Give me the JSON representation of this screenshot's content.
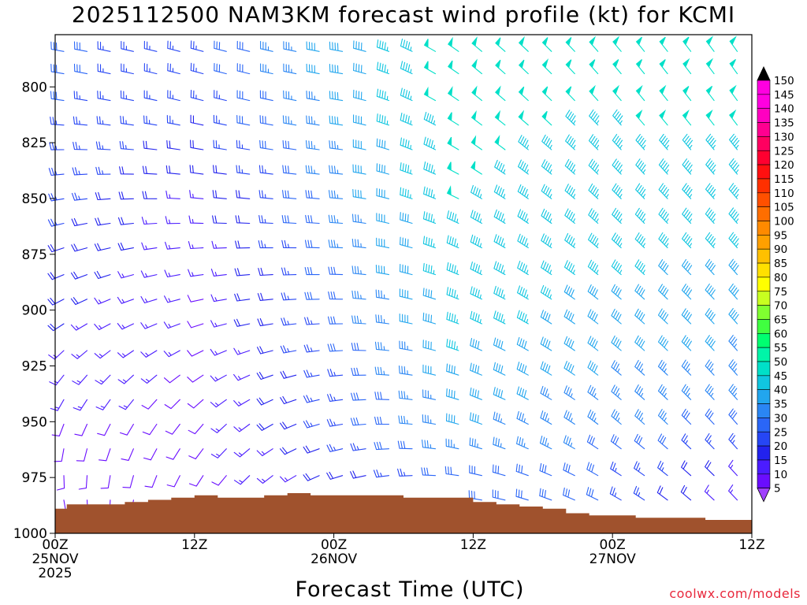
{
  "chart_data": {
    "type": "wind_barb_time_height",
    "title": "2025112500 NAM3KM forecast wind profile (kt) for KCMI",
    "xlabel": "Forecast Time (UTC)",
    "ylabel": "",
    "credit": "coolwx.com/models",
    "x_range_hours": [
      0,
      60
    ],
    "y_range_hPa": [
      1000,
      775
    ],
    "x_ticks": [
      {
        "hour": 0,
        "lines": [
          "00Z",
          "25NOV",
          "2025"
        ]
      },
      {
        "hour": 12,
        "lines": [
          "12Z"
        ]
      },
      {
        "hour": 24,
        "lines": [
          "00Z",
          "26NOV"
        ]
      },
      {
        "hour": 36,
        "lines": [
          "12Z"
        ]
      },
      {
        "hour": 48,
        "lines": [
          "00Z",
          "27NOV"
        ]
      },
      {
        "hour": 60,
        "lines": [
          "12Z"
        ]
      }
    ],
    "y_ticks": [
      800,
      825,
      850,
      875,
      900,
      925,
      950,
      975,
      1000
    ],
    "barb_times_hours": [
      0,
      2,
      4,
      6,
      8,
      10,
      12,
      14,
      16,
      18,
      20,
      22,
      24,
      26,
      28,
      30,
      32,
      34,
      36,
      38,
      40,
      42,
      44,
      46,
      48,
      50,
      52,
      54,
      56,
      58
    ],
    "barb_levels_hPa": [
      782,
      792,
      804,
      815,
      826,
      837,
      848,
      859,
      870,
      882,
      893,
      904,
      916,
      927,
      938,
      949,
      960,
      972,
      983
    ],
    "wind_speed_keyframes_kt": [
      {
        "hour": 0,
        "levels": [
          [
            980,
            8
          ],
          [
            950,
            12
          ],
          [
            900,
            18
          ],
          [
            850,
            24
          ],
          [
            800,
            28
          ]
        ]
      },
      {
        "hour": 12,
        "levels": [
          [
            980,
            10
          ],
          [
            950,
            12
          ],
          [
            900,
            12
          ],
          [
            850,
            15
          ],
          [
            800,
            25
          ]
        ]
      },
      {
        "hour": 24,
        "levels": [
          [
            980,
            18
          ],
          [
            950,
            25
          ],
          [
            900,
            30
          ],
          [
            850,
            35
          ],
          [
            800,
            40
          ]
        ]
      },
      {
        "hour": 34,
        "levels": [
          [
            980,
            30
          ],
          [
            950,
            38
          ],
          [
            900,
            45
          ],
          [
            850,
            48
          ],
          [
            800,
            50
          ]
        ]
      },
      {
        "hour": 44,
        "levels": [
          [
            980,
            30
          ],
          [
            950,
            35
          ],
          [
            900,
            42
          ],
          [
            850,
            45
          ],
          [
            800,
            48
          ]
        ]
      },
      {
        "hour": 60,
        "levels": [
          [
            980,
            10
          ],
          [
            950,
            30
          ],
          [
            900,
            40
          ],
          [
            850,
            45
          ],
          [
            800,
            50
          ]
        ]
      }
    ],
    "wind_direction_keyframes_deg": [
      {
        "hour": 0,
        "levels": [
          [
            980,
            170
          ],
          [
            950,
            200
          ],
          [
            900,
            240
          ],
          [
            850,
            260
          ],
          [
            800,
            280
          ]
        ]
      },
      {
        "hour": 12,
        "levels": [
          [
            980,
            210
          ],
          [
            950,
            220
          ],
          [
            900,
            255
          ],
          [
            850,
            275
          ],
          [
            800,
            285
          ]
        ]
      },
      {
        "hour": 24,
        "levels": [
          [
            980,
            250
          ],
          [
            950,
            260
          ],
          [
            900,
            270
          ],
          [
            850,
            275
          ],
          [
            800,
            280
          ]
        ]
      },
      {
        "hour": 36,
        "levels": [
          [
            980,
            280
          ],
          [
            950,
            290
          ],
          [
            900,
            295
          ],
          [
            850,
            300
          ],
          [
            800,
            310
          ]
        ]
      },
      {
        "hour": 48,
        "levels": [
          [
            980,
            300
          ],
          [
            950,
            310
          ],
          [
            900,
            310
          ],
          [
            850,
            315
          ],
          [
            800,
            320
          ]
        ]
      },
      {
        "hour": 60,
        "levels": [
          [
            980,
            320
          ],
          [
            950,
            320
          ],
          [
            900,
            320
          ],
          [
            850,
            320
          ],
          [
            800,
            325
          ]
        ]
      }
    ],
    "surface_pressure_hPa": [
      {
        "hour": 0,
        "p": 989
      },
      {
        "hour": 1,
        "p": 987
      },
      {
        "hour": 4,
        "p": 987
      },
      {
        "hour": 6,
        "p": 986
      },
      {
        "hour": 8,
        "p": 985
      },
      {
        "hour": 10,
        "p": 984
      },
      {
        "hour": 12,
        "p": 983
      },
      {
        "hour": 14,
        "p": 984
      },
      {
        "hour": 16,
        "p": 984
      },
      {
        "hour": 18,
        "p": 983
      },
      {
        "hour": 20,
        "p": 982
      },
      {
        "hour": 22,
        "p": 983
      },
      {
        "hour": 26,
        "p": 983
      },
      {
        "hour": 28,
        "p": 983
      },
      {
        "hour": 30,
        "p": 984
      },
      {
        "hour": 34,
        "p": 984
      },
      {
        "hour": 36,
        "p": 986
      },
      {
        "hour": 38,
        "p": 987
      },
      {
        "hour": 40,
        "p": 988
      },
      {
        "hour": 42,
        "p": 989
      },
      {
        "hour": 44,
        "p": 991
      },
      {
        "hour": 46,
        "p": 992
      },
      {
        "hour": 50,
        "p": 993
      },
      {
        "hour": 56,
        "p": 994
      },
      {
        "hour": 60,
        "p": 995
      }
    ],
    "colorbar": {
      "levels": [
        5,
        10,
        15,
        20,
        25,
        30,
        35,
        40,
        45,
        50,
        55,
        60,
        65,
        70,
        75,
        80,
        85,
        90,
        95,
        100,
        105,
        110,
        115,
        120,
        125,
        130,
        135,
        140,
        145,
        150
      ],
      "colors": [
        "#8b00ff",
        "#6a0dff",
        "#4b1cff",
        "#2222ee",
        "#2646f5",
        "#2a66f7",
        "#2a86f4",
        "#22a6ee",
        "#10c6e0",
        "#00e0c8",
        "#00f5a8",
        "#00ff70",
        "#40ff40",
        "#80ff30",
        "#c8ff20",
        "#ffff00",
        "#ffe000",
        "#ffc000",
        "#ffa000",
        "#ff8a00",
        "#ff6e00",
        "#ff5000",
        "#ff3000",
        "#ff1010",
        "#ff0030",
        "#ff0060",
        "#ff0090",
        "#ff00c0",
        "#ff00e0",
        "#000000"
      ],
      "over_color": "#000000",
      "under_color": "#a040ff",
      "tick_labels": [
        "5",
        "10",
        "15",
        "20",
        "25",
        "30",
        "35",
        "40",
        "45",
        "50",
        "55",
        "60",
        "65",
        "70",
        "75",
        "80",
        "85",
        "90",
        "95",
        "100",
        "105",
        "110",
        "115",
        "120",
        "125",
        "130",
        "135",
        "140",
        "145",
        "150"
      ]
    },
    "ground_color": "#a0522d"
  }
}
